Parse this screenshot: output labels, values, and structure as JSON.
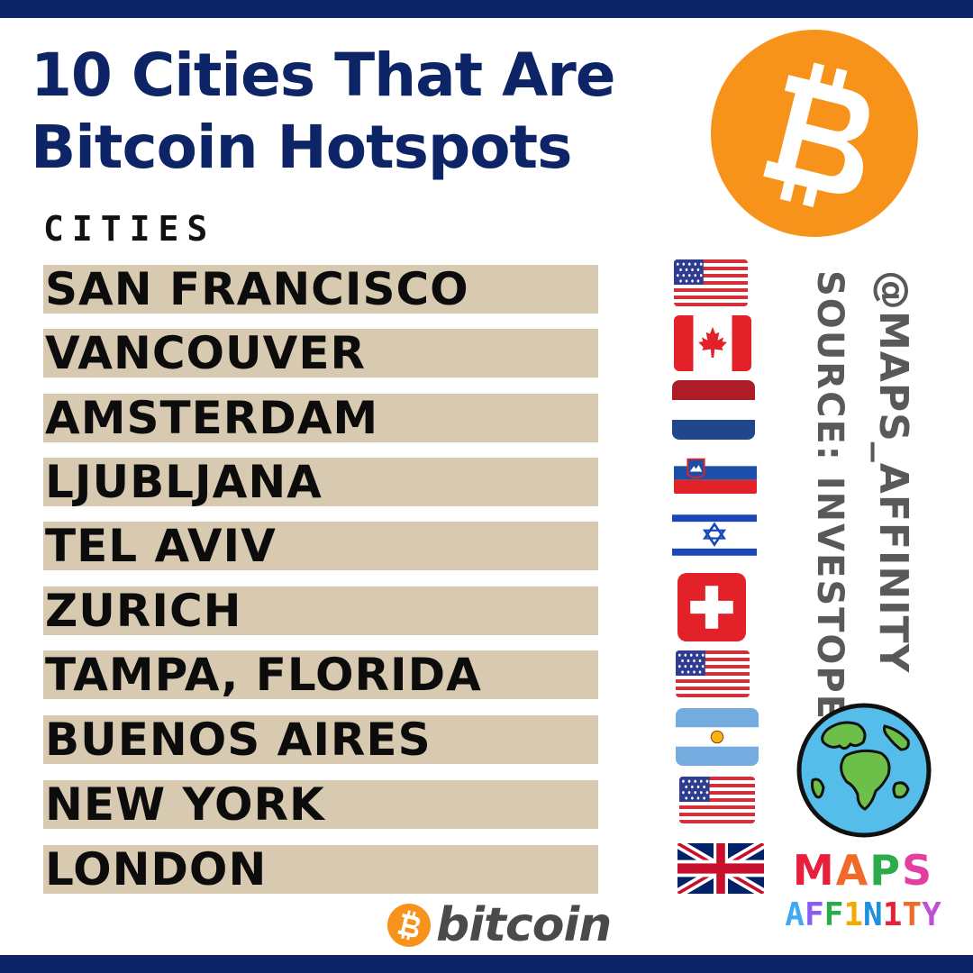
{
  "title": {
    "line1": "10 Cities That Are",
    "line2": "Bitcoin Hotspots"
  },
  "column_header": "CITIES",
  "cities": [
    {
      "name": "SAN FRANCISCO",
      "flag": "us"
    },
    {
      "name": "VANCOUVER",
      "flag": "ca"
    },
    {
      "name": "AMSTERDAM",
      "flag": "nl"
    },
    {
      "name": "LJUBLJANA",
      "flag": "si"
    },
    {
      "name": "TEL AVIV",
      "flag": "il"
    },
    {
      "name": "ZURICH",
      "flag": "ch"
    },
    {
      "name": "TAMPA, FLORIDA",
      "flag": "us"
    },
    {
      "name": "BUENOS AIRES",
      "flag": "ar"
    },
    {
      "name": "NEW YORK",
      "flag": "us"
    },
    {
      "name": "LONDON",
      "flag": "gb"
    }
  ],
  "handle": "@MAPS_AFFINITY",
  "source": "SOURCE: INVESTOPEDIA",
  "brand": {
    "maps_letters": [
      "M",
      "A",
      "P",
      "S"
    ],
    "affinity_letters": [
      "A",
      "F",
      "F",
      "1",
      "N",
      "1",
      "T",
      "Y"
    ]
  },
  "bitcoin_wordmark": "bitcoin",
  "colors": {
    "navy": "#0d2467",
    "bitcoin_orange": "#f7931a",
    "row_background": "#d8cab0",
    "maps_letter_colors": [
      "#e8203c",
      "#f06a2a",
      "#2bab4a",
      "#e23fa0"
    ],
    "affinity_letter_colors": [
      "#3fa9f5",
      "#8a5cf6",
      "#2bab4a",
      "#f2a900",
      "#1f8fe0",
      "#e8203c",
      "#f06a2a",
      "#c04fd8"
    ]
  }
}
